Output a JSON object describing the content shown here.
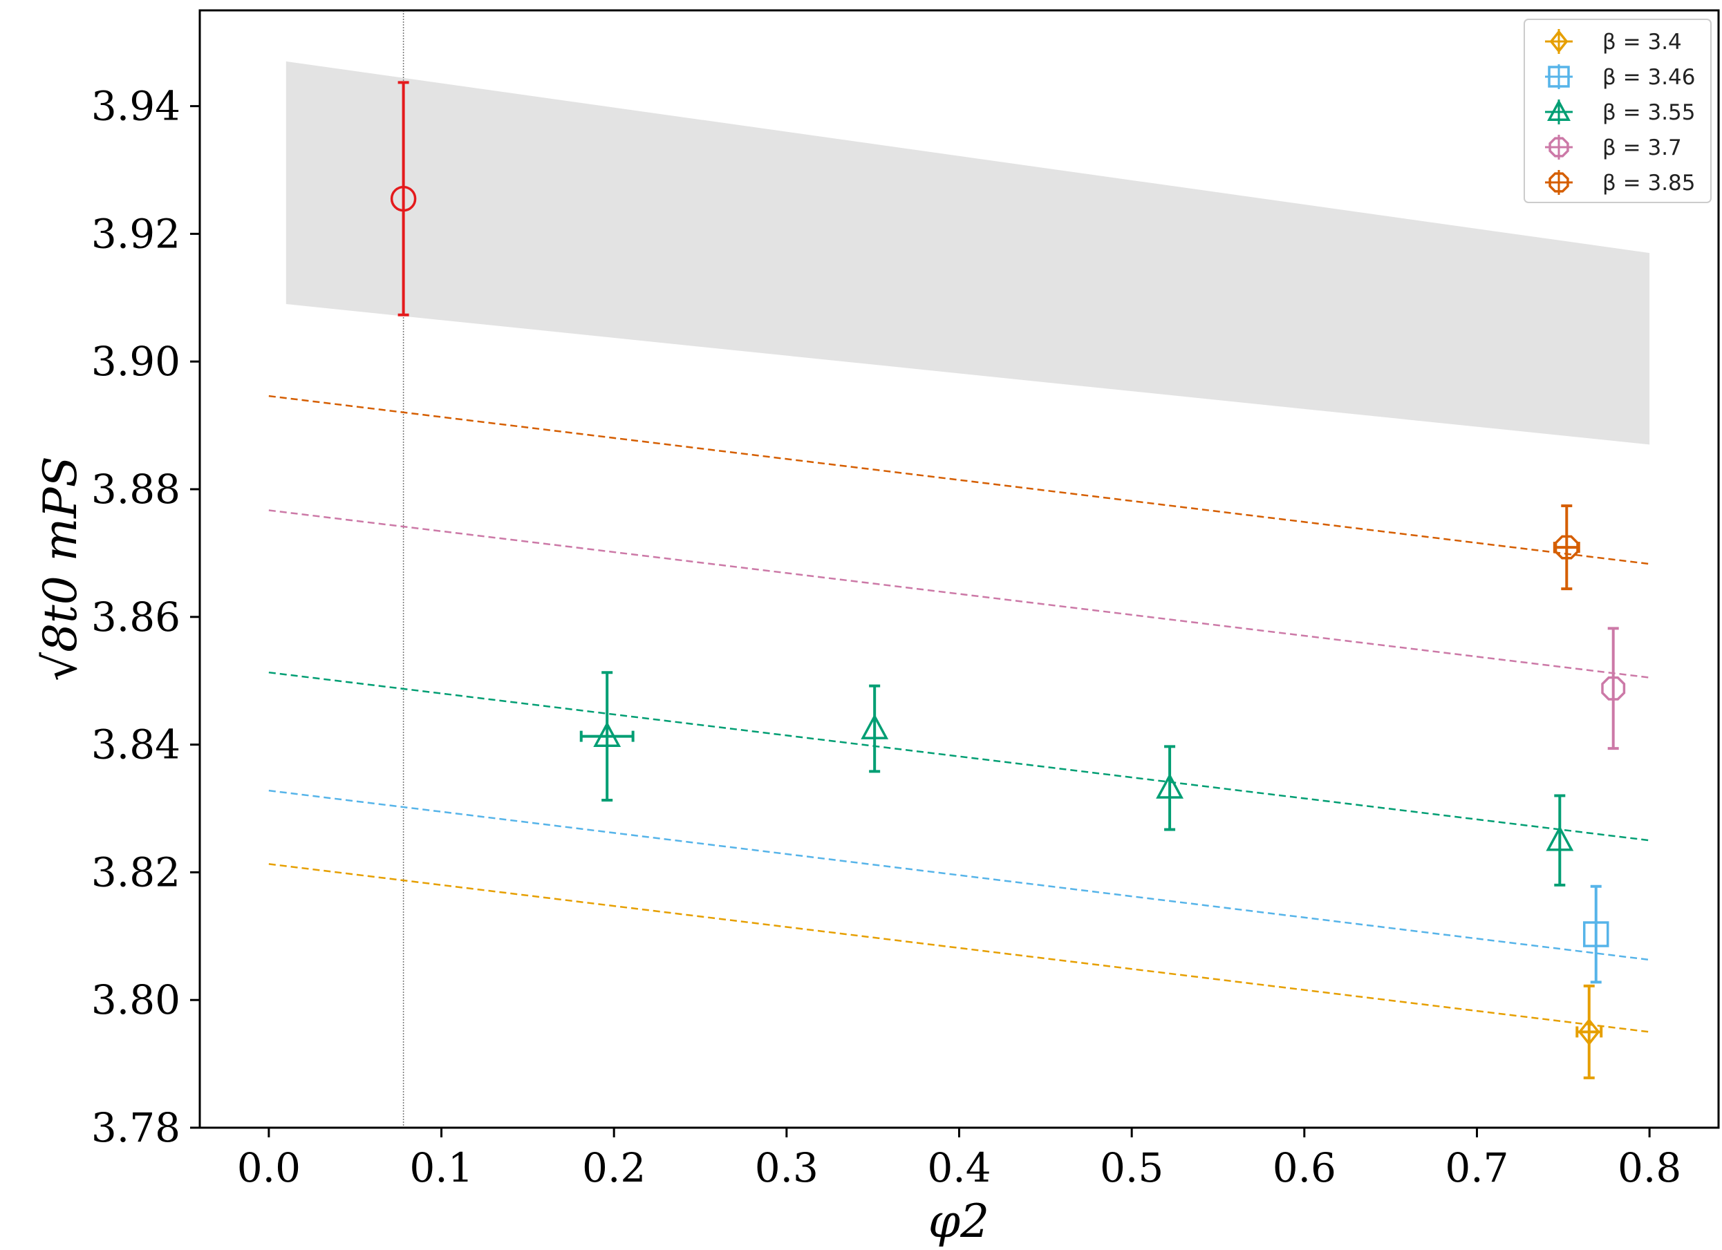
{
  "chart_data": {
    "type": "scatter",
    "xlabel": "φ2",
    "ylabel": "√8t0 mPS",
    "xlim": [
      -0.04,
      0.84
    ],
    "ylim": [
      3.78,
      3.955
    ],
    "xticks": [
      0.0,
      0.1,
      0.2,
      0.3,
      0.4,
      0.5,
      0.6,
      0.7,
      0.8
    ],
    "xtick_labels": [
      "0.0",
      "0.1",
      "0.2",
      "0.3",
      "0.4",
      "0.5",
      "0.6",
      "0.7",
      "0.8"
    ],
    "yticks": [
      3.78,
      3.8,
      3.82,
      3.84,
      3.86,
      3.88,
      3.9,
      3.92,
      3.94
    ],
    "ytick_labels": [
      "3.78",
      "3.80",
      "3.82",
      "3.84",
      "3.86",
      "3.88",
      "3.90",
      "3.92",
      "3.94"
    ],
    "grid": false,
    "legend_position": "top-right",
    "physical_point": {
      "x": 0.078
    },
    "band": {
      "x": [
        0.01,
        0.8
      ],
      "lower": [
        3.909,
        3.887
      ],
      "upper": [
        3.947,
        3.917
      ],
      "color": "#e3e3e3"
    },
    "extrapolated_point": {
      "x": 0.078,
      "y": 3.9255,
      "yerr": 0.0182,
      "color": "#e41a1c"
    },
    "series": [
      {
        "name": "β = 3.4",
        "color": "#e69f00",
        "marker": "diamond",
        "fit_line": {
          "x": [
            0.0,
            0.8
          ],
          "y": [
            3.8213,
            3.795
          ]
        },
        "points": [
          {
            "x": 0.765,
            "y": 3.795,
            "yerr": 0.0072,
            "xerr": 0.007
          }
        ]
      },
      {
        "name": "β = 3.46",
        "color": "#56b4e9",
        "marker": "square",
        "fit_line": {
          "x": [
            0.0,
            0.8
          ],
          "y": [
            3.8328,
            3.8063
          ]
        },
        "points": [
          {
            "x": 0.769,
            "y": 3.8103,
            "yerr": 0.0075,
            "xerr": 0.0
          }
        ]
      },
      {
        "name": "β = 3.55",
        "color": "#009e73",
        "marker": "triangle",
        "fit_line": {
          "x": [
            0.0,
            0.8
          ],
          "y": [
            3.8513,
            3.825
          ]
        },
        "points": [
          {
            "x": 0.196,
            "y": 3.8413,
            "yerr": 0.01,
            "xerr": 0.015
          },
          {
            "x": 0.351,
            "y": 3.8425,
            "yerr": 0.0067,
            "xerr": 0.0
          },
          {
            "x": 0.522,
            "y": 3.8332,
            "yerr": 0.0065,
            "xerr": 0.0
          },
          {
            "x": 0.748,
            "y": 3.825,
            "yerr": 0.007,
            "xerr": 0.0
          }
        ]
      },
      {
        "name": "β = 3.7",
        "color": "#cc79a7",
        "marker": "octagon",
        "fit_line": {
          "x": [
            0.0,
            0.8
          ],
          "y": [
            3.8767,
            3.8505
          ]
        },
        "points": [
          {
            "x": 0.779,
            "y": 3.8488,
            "yerr": 0.0094,
            "xerr": 0.0
          }
        ]
      },
      {
        "name": "β = 3.85",
        "color": "#d55e00",
        "marker": "octagon",
        "fit_line": {
          "x": [
            0.0,
            0.8
          ],
          "y": [
            3.8946,
            3.8683
          ]
        },
        "points": [
          {
            "x": 0.752,
            "y": 3.8709,
            "yerr": 0.0065,
            "xerr": 0.007
          }
        ]
      }
    ]
  }
}
